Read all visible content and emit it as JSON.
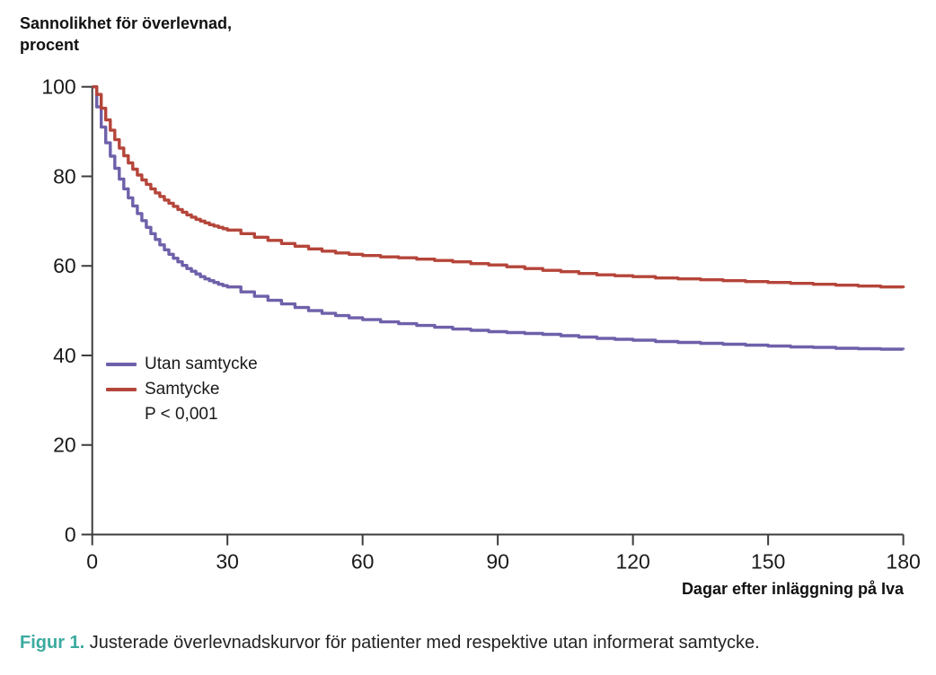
{
  "figure": {
    "title": "Sannolikhet för överlevnad,\nprocent",
    "x_axis_label": "Dagar efter inläggning på Iva",
    "caption_label": "Figur 1.",
    "caption_text": " Justerade överlevnadskurvor för patienter med respektive utan informerat samtycke."
  },
  "legend": {
    "items": [
      {
        "label": "Utan samtycke",
        "color": "#6F60AA"
      },
      {
        "label": "Samtycke",
        "color": "#B5453A"
      }
    ],
    "p_value": "P < 0,001"
  },
  "colors": {
    "purple_series": "#6F60AA",
    "red_series": "#B5453A",
    "axis": "#3C3C3C",
    "caption_accent_teal": "#3BAA9F",
    "text": "#1A1A1A"
  },
  "chart_data": {
    "type": "line",
    "subtype": "kaplan-meier-step",
    "title": "Sannolikhet för överlevnad, procent",
    "xlabel": "Dagar efter inläggning på Iva",
    "ylabel": "Sannolikhet för överlevnad, procent",
    "xlim": [
      0,
      180
    ],
    "ylim": [
      0,
      100
    ],
    "x_ticks": [
      0,
      30,
      60,
      90,
      120,
      150,
      180
    ],
    "y_ticks": [
      0,
      20,
      40,
      60,
      80,
      100
    ],
    "grid": false,
    "legend_position": "inside-left",
    "annotations": [
      "P < 0,001"
    ],
    "series": [
      {
        "name": "Utan samtycke",
        "color": "#6F60AA",
        "points": [
          [
            0,
            100
          ],
          [
            1,
            95.5
          ],
          [
            2,
            91.0
          ],
          [
            3,
            87.5
          ],
          [
            4,
            84.5
          ],
          [
            5,
            81.8
          ],
          [
            6,
            79.4
          ],
          [
            7,
            77.2
          ],
          [
            8,
            75.2
          ],
          [
            9,
            73.4
          ],
          [
            10,
            71.7
          ],
          [
            11,
            70.1
          ],
          [
            12,
            68.6
          ],
          [
            13,
            67.2
          ],
          [
            14,
            65.9
          ],
          [
            15,
            64.7
          ],
          [
            16,
            63.6
          ],
          [
            17,
            62.6
          ],
          [
            18,
            61.7
          ],
          [
            19,
            60.9
          ],
          [
            20,
            60.1
          ],
          [
            21,
            59.4
          ],
          [
            22,
            58.8
          ],
          [
            23,
            58.2
          ],
          [
            24,
            57.6
          ],
          [
            25,
            57.1
          ],
          [
            26,
            56.7
          ],
          [
            27,
            56.3
          ],
          [
            28,
            55.9
          ],
          [
            29,
            55.6
          ],
          [
            30,
            55.3
          ],
          [
            33,
            54.2
          ],
          [
            36,
            53.2
          ],
          [
            39,
            52.3
          ],
          [
            42,
            51.5
          ],
          [
            45,
            50.7
          ],
          [
            48,
            50.0
          ],
          [
            51,
            49.4
          ],
          [
            54,
            48.9
          ],
          [
            57,
            48.4
          ],
          [
            60,
            48.0
          ],
          [
            64,
            47.5
          ],
          [
            68,
            47.1
          ],
          [
            72,
            46.7
          ],
          [
            76,
            46.3
          ],
          [
            80,
            45.9
          ],
          [
            84,
            45.6
          ],
          [
            88,
            45.3
          ],
          [
            92,
            45.1
          ],
          [
            96,
            44.9
          ],
          [
            100,
            44.7
          ],
          [
            104,
            44.4
          ],
          [
            108,
            44.1
          ],
          [
            112,
            43.8
          ],
          [
            116,
            43.6
          ],
          [
            120,
            43.4
          ],
          [
            125,
            43.1
          ],
          [
            130,
            42.9
          ],
          [
            135,
            42.7
          ],
          [
            140,
            42.5
          ],
          [
            145,
            42.3
          ],
          [
            150,
            42.1
          ],
          [
            155,
            41.9
          ],
          [
            160,
            41.8
          ],
          [
            165,
            41.6
          ],
          [
            170,
            41.5
          ],
          [
            175,
            41.4
          ],
          [
            180,
            41.3
          ]
        ]
      },
      {
        "name": "Samtycke",
        "color": "#B5453A",
        "points": [
          [
            0,
            100
          ],
          [
            1,
            98.3
          ],
          [
            2,
            95.2
          ],
          [
            3,
            92.6
          ],
          [
            4,
            90.3
          ],
          [
            5,
            88.2
          ],
          [
            6,
            86.3
          ],
          [
            7,
            84.6
          ],
          [
            8,
            83.0
          ],
          [
            9,
            81.6
          ],
          [
            10,
            80.3
          ],
          [
            11,
            79.2
          ],
          [
            12,
            78.2
          ],
          [
            13,
            77.2
          ],
          [
            14,
            76.3
          ],
          [
            15,
            75.5
          ],
          [
            16,
            74.7
          ],
          [
            17,
            74.0
          ],
          [
            18,
            73.3
          ],
          [
            19,
            72.6
          ],
          [
            20,
            72.0
          ],
          [
            21,
            71.4
          ],
          [
            22,
            70.9
          ],
          [
            23,
            70.4
          ],
          [
            24,
            70.0
          ],
          [
            25,
            69.6
          ],
          [
            26,
            69.2
          ],
          [
            27,
            68.9
          ],
          [
            28,
            68.6
          ],
          [
            29,
            68.3
          ],
          [
            30,
            68.0
          ],
          [
            33,
            67.2
          ],
          [
            36,
            66.4
          ],
          [
            39,
            65.7
          ],
          [
            42,
            65.0
          ],
          [
            45,
            64.4
          ],
          [
            48,
            63.8
          ],
          [
            51,
            63.3
          ],
          [
            54,
            62.9
          ],
          [
            57,
            62.6
          ],
          [
            60,
            62.3
          ],
          [
            64,
            62.0
          ],
          [
            68,
            61.8
          ],
          [
            72,
            61.5
          ],
          [
            76,
            61.2
          ],
          [
            80,
            60.9
          ],
          [
            84,
            60.5
          ],
          [
            88,
            60.2
          ],
          [
            92,
            59.8
          ],
          [
            96,
            59.4
          ],
          [
            100,
            59.0
          ],
          [
            104,
            58.7
          ],
          [
            108,
            58.3
          ],
          [
            112,
            58.0
          ],
          [
            116,
            57.8
          ],
          [
            120,
            57.6
          ],
          [
            125,
            57.3
          ],
          [
            130,
            57.1
          ],
          [
            135,
            56.9
          ],
          [
            140,
            56.7
          ],
          [
            145,
            56.5
          ],
          [
            150,
            56.3
          ],
          [
            155,
            56.1
          ],
          [
            160,
            55.9
          ],
          [
            165,
            55.7
          ],
          [
            170,
            55.5
          ],
          [
            175,
            55.3
          ],
          [
            180,
            55.1
          ]
        ]
      }
    ]
  }
}
